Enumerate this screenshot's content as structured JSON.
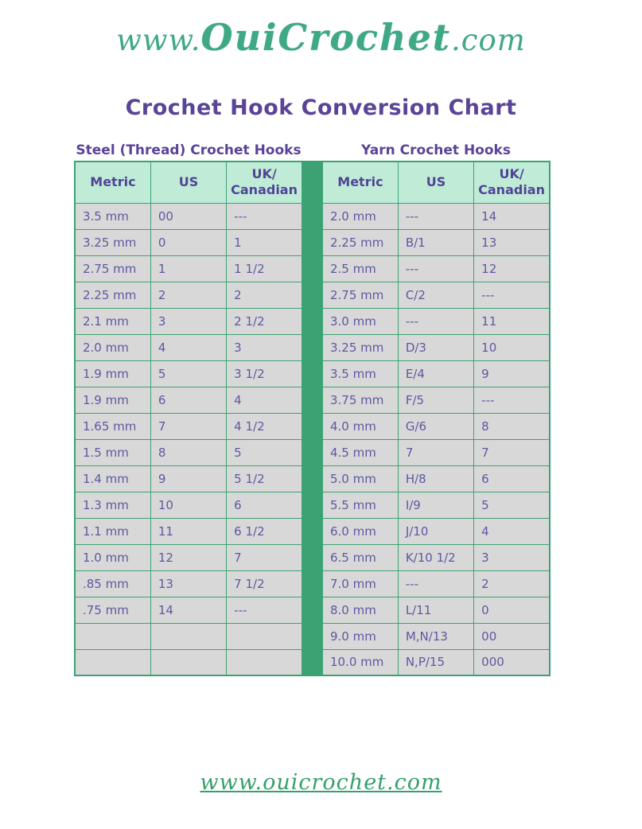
{
  "logo": {
    "prefix": "www.",
    "brand": "OuiCrochet",
    "suffix": ".com"
  },
  "title": "Crochet Hook Conversion Chart",
  "sections": {
    "steel": {
      "title": "Steel (Thread) Crochet Hooks",
      "headers": [
        "Metric",
        "US",
        "UK/\nCanadian"
      ],
      "rows": [
        [
          "3.5 mm",
          "00",
          "---"
        ],
        [
          "3.25 mm",
          "0",
          "1"
        ],
        [
          "2.75 mm",
          "1",
          "1 1/2"
        ],
        [
          "2.25 mm",
          "2",
          "2"
        ],
        [
          "2.1 mm",
          "3",
          "2 1/2"
        ],
        [
          "2.0 mm",
          "4",
          "3"
        ],
        [
          "1.9 mm",
          "5",
          "3 1/2"
        ],
        [
          "1.9 mm",
          "6",
          "4"
        ],
        [
          "1.65 mm",
          "7",
          "4 1/2"
        ],
        [
          "1.5 mm",
          "8",
          "5"
        ],
        [
          "1.4 mm",
          "9",
          "5 1/2"
        ],
        [
          "1.3 mm",
          "10",
          "6"
        ],
        [
          "1.1 mm",
          "11",
          "6 1/2"
        ],
        [
          "1.0 mm",
          "12",
          "7"
        ],
        [
          ".85 mm",
          "13",
          "7 1/2"
        ],
        [
          ".75 mm",
          "14",
          "---"
        ],
        [
          "",
          "",
          ""
        ],
        [
          "",
          "",
          ""
        ]
      ]
    },
    "yarn": {
      "title": "Yarn Crochet Hooks",
      "headers": [
        "Metric",
        "US",
        "UK/\nCanadian"
      ],
      "rows": [
        [
          "2.0 mm",
          "---",
          "14"
        ],
        [
          "2.25 mm",
          "B/1",
          "13"
        ],
        [
          "2.5 mm",
          "---",
          "12"
        ],
        [
          "2.75 mm",
          "C/2",
          "---"
        ],
        [
          "3.0 mm",
          "---",
          "11"
        ],
        [
          "3.25 mm",
          "D/3",
          "10"
        ],
        [
          "3.5 mm",
          "E/4",
          "9"
        ],
        [
          "3.75 mm",
          "F/5",
          "---"
        ],
        [
          "4.0 mm",
          "G/6",
          "8"
        ],
        [
          "4.5 mm",
          "7",
          "7"
        ],
        [
          "5.0 mm",
          "H/8",
          "6"
        ],
        [
          "5.5 mm",
          "I/9",
          "5"
        ],
        [
          "6.0 mm",
          "J/10",
          "4"
        ],
        [
          "6.5 mm",
          "K/10 1/2",
          "3"
        ],
        [
          "7.0 mm",
          "---",
          "2"
        ],
        [
          "8.0 mm",
          "L/11",
          "0"
        ],
        [
          "9.0 mm",
          "M,N/13",
          "00"
        ],
        [
          "10.0 mm",
          "N,P/15",
          "000"
        ]
      ]
    }
  },
  "footer": {
    "link": "www.ouicrochet.com"
  },
  "colors": {
    "accent_green": "#3da273",
    "header_mint": "#c0ebd7",
    "cell_gray": "#d8d8d8",
    "heading_purple": "#5b4397",
    "cell_text_purple": "#5f58a1",
    "logo_teal": "#3fa886",
    "footer_green": "#35a06c"
  }
}
